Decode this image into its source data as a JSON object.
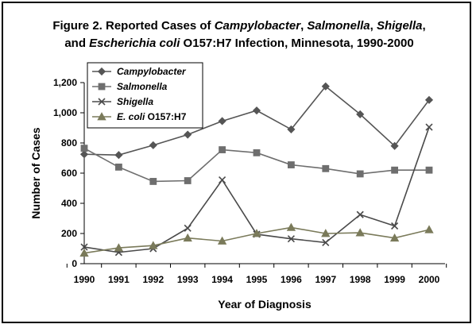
{
  "figure": {
    "title_line1": [
      {
        "text": "Figure 2.  Reported Cases of ",
        "italic": false
      },
      {
        "text": "Campylobacter",
        "italic": true
      },
      {
        "text": ", ",
        "italic": false
      },
      {
        "text": "Salmonella",
        "italic": true
      },
      {
        "text": ", ",
        "italic": false
      },
      {
        "text": "Shigella",
        "italic": true
      },
      {
        "text": ",",
        "italic": false
      }
    ],
    "title_line2": [
      {
        "text": "and ",
        "italic": false
      },
      {
        "text": "Escherichia coli",
        "italic": true
      },
      {
        "text": " O157:H7 Infection, Minnesota, 1990-2000",
        "italic": false
      }
    ]
  },
  "chart_data": {
    "type": "line",
    "title": "Figure 2.  Reported Cases of Campylobacter, Salmonella, Shigella, and Escherichia coli O157:H7 Infection, Minnesota, 1990-2000",
    "xlabel": "Year of Diagnosis",
    "ylabel": "Number of Cases",
    "x": [
      1990,
      1991,
      1992,
      1993,
      1994,
      1995,
      1996,
      1997,
      1998,
      1999,
      2000
    ],
    "x_tick_labels": [
      "1990",
      "1991",
      "1992",
      "1993",
      "1994",
      "1995",
      "1996",
      "1997",
      "1998",
      "1999",
      "2000"
    ],
    "ylim": [
      0,
      1200
    ],
    "y_ticks": [
      0,
      200,
      400,
      600,
      800,
      1000,
      1200
    ],
    "y_tick_labels": [
      "0",
      "200",
      "400",
      "600",
      "800",
      "1,000",
      "1,200"
    ],
    "grid": false,
    "legend_position": "top-left",
    "series": [
      {
        "name": "Campylobacter",
        "label_parts": [
          {
            "text": "Campylobacter",
            "italic": true
          }
        ],
        "marker": "diamond",
        "color": "#555555",
        "values": [
          725,
          720,
          785,
          855,
          945,
          1015,
          890,
          1175,
          990,
          780,
          1085
        ]
      },
      {
        "name": "Salmonella",
        "label_parts": [
          {
            "text": "Salmonella",
            "italic": true
          }
        ],
        "marker": "square",
        "color": "#6e6e6e",
        "values": [
          765,
          640,
          545,
          550,
          755,
          735,
          655,
          630,
          595,
          620,
          620
        ]
      },
      {
        "name": "Shigella",
        "label_parts": [
          {
            "text": "Shigella",
            "italic": true
          }
        ],
        "marker": "x",
        "color": "#4a4a4a",
        "values": [
          110,
          75,
          100,
          235,
          555,
          195,
          165,
          140,
          325,
          250,
          905
        ]
      },
      {
        "name": "E. coli O157:H7",
        "label_parts": [
          {
            "text": "E. coli",
            "italic": true
          },
          {
            "text": " O157:H7",
            "italic": false
          }
        ],
        "marker": "triangle",
        "color": "#7a7a5a",
        "values": [
          70,
          105,
          120,
          170,
          150,
          200,
          240,
          200,
          205,
          170,
          225
        ]
      }
    ]
  }
}
